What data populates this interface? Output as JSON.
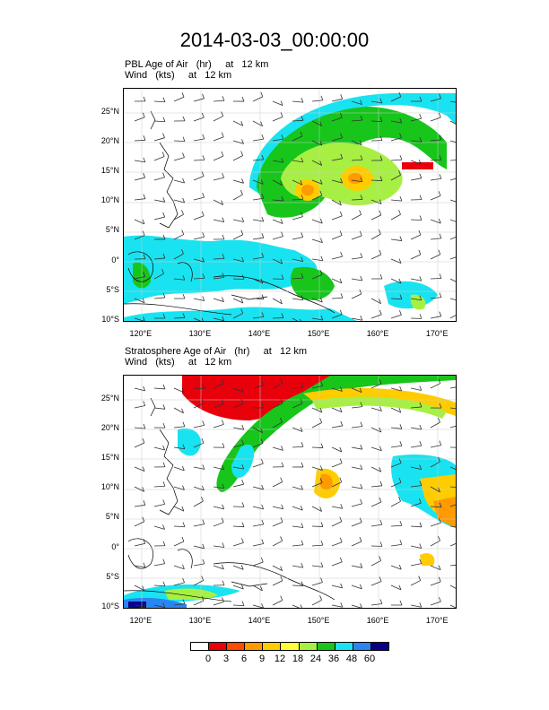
{
  "title": "2014-03-03_00:00:00",
  "panels": [
    {
      "name": "pbl",
      "line1": "PBL Age of Air   (hr)     at   12 km",
      "line2": "Wind   (kts)     at   12 km"
    },
    {
      "name": "stratosphere",
      "line1": "Stratosphere Age of Air   (hr)     at   12 km",
      "line2": "Wind   (kts)     at   12 km"
    }
  ],
  "axes": {
    "lat_labels": [
      "25°N",
      "20°N",
      "15°N",
      "10°N",
      "5°N",
      "0°",
      "5°S",
      "10°S"
    ],
    "lat_values": [
      25,
      20,
      15,
      10,
      5,
      0,
      -5,
      -10
    ],
    "lon_labels": [
      "120°E",
      "130°E",
      "140°E",
      "150°E",
      "160°E",
      "170°E"
    ],
    "lon_values": [
      120,
      130,
      140,
      150,
      160,
      170
    ],
    "lon_range": [
      117,
      173
    ],
    "lat_range": [
      -10,
      29
    ]
  },
  "colorbar": {
    "labels": [
      "0",
      "3",
      "6",
      "9",
      "12",
      "18",
      "24",
      "36",
      "48",
      "60"
    ],
    "colors": [
      "#ffffff",
      "#e8000b",
      "#ff4a00",
      "#ff9a00",
      "#ffcc00",
      "#ffff3a",
      "#a7f043",
      "#17c51b",
      "#19e3f0",
      "#2a85f2",
      "#08008a"
    ]
  }
}
